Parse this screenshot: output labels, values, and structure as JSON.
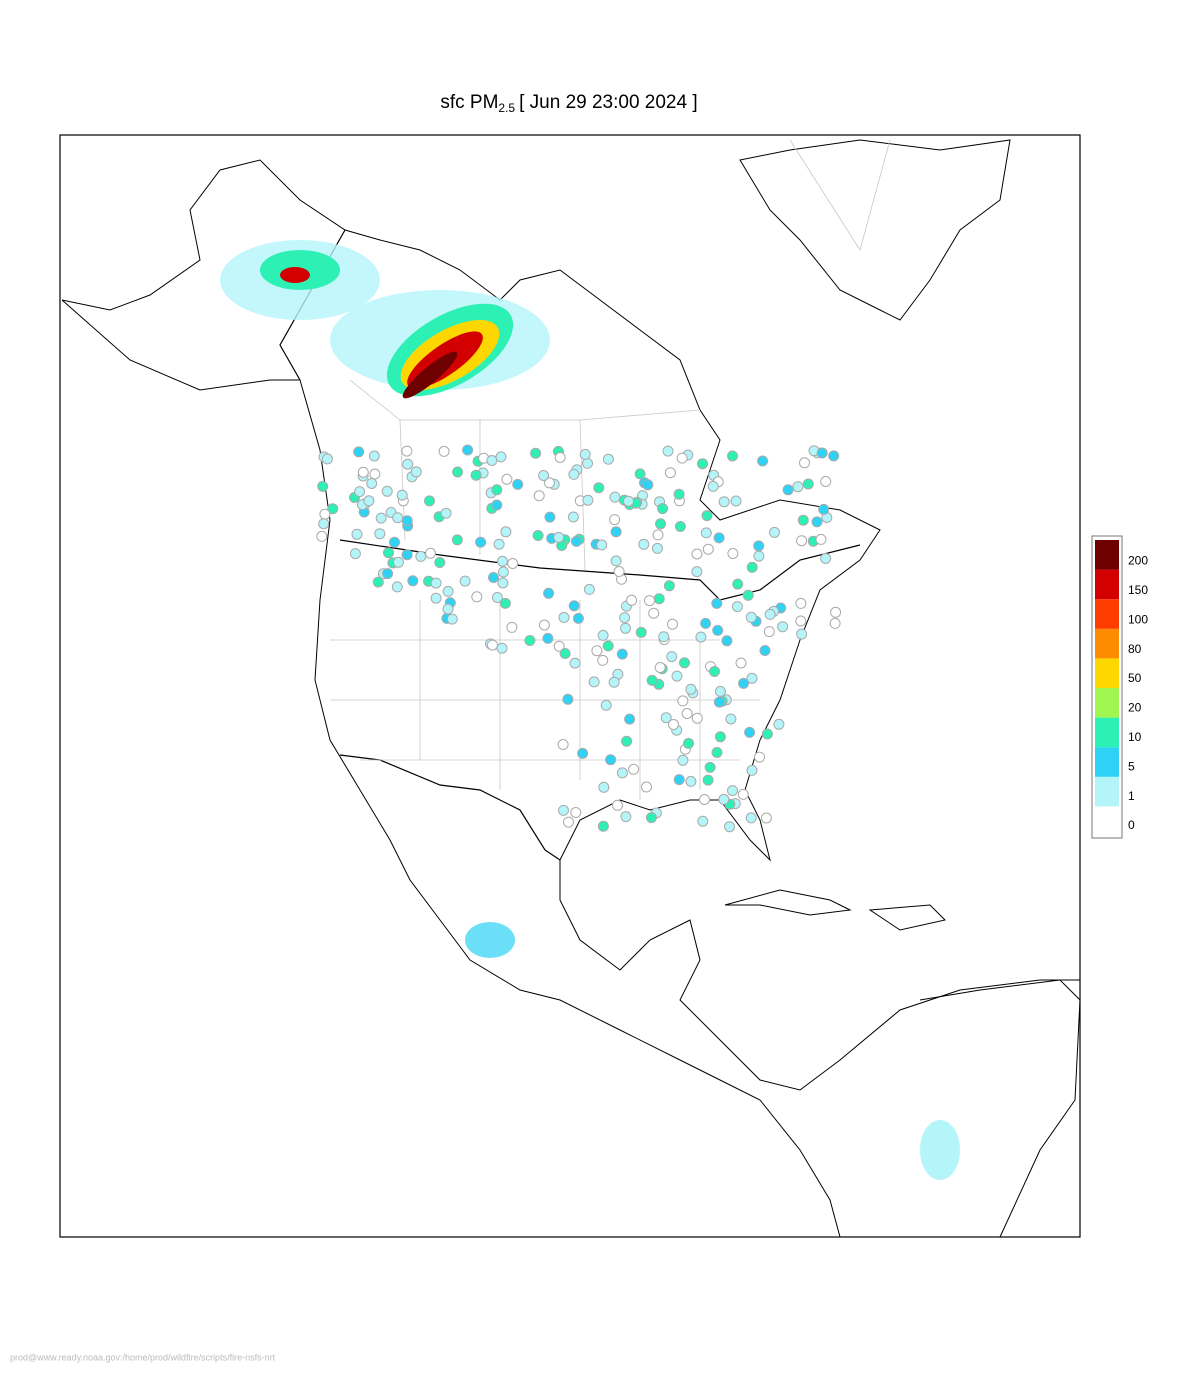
{
  "map": {
    "title": {
      "prefix": "sfc PM",
      "subscript": "2.5",
      "suffix": "[ Jun 29 23:00 2024 ]"
    },
    "legend": {
      "levels": [
        {
          "value": 0,
          "color": "#ffffff"
        },
        {
          "value": 1,
          "color": "#b4f5fa"
        },
        {
          "value": 5,
          "color": "#2dd2f5"
        },
        {
          "value": 10,
          "color": "#2df0b4"
        },
        {
          "value": 20,
          "color": "#a0f550"
        },
        {
          "value": 50,
          "color": "#ffd700"
        },
        {
          "value": 80,
          "color": "#ff8c00"
        },
        {
          "value": 100,
          "color": "#ff3c00"
        },
        {
          "value": 150,
          "color": "#d20000"
        },
        {
          "value": 200,
          "color": "#6e0000"
        }
      ]
    },
    "footer": "prod@www.ready.noaa.gov:/home/prod/wildfire/scripts/fire-nsfs-nrt"
  }
}
